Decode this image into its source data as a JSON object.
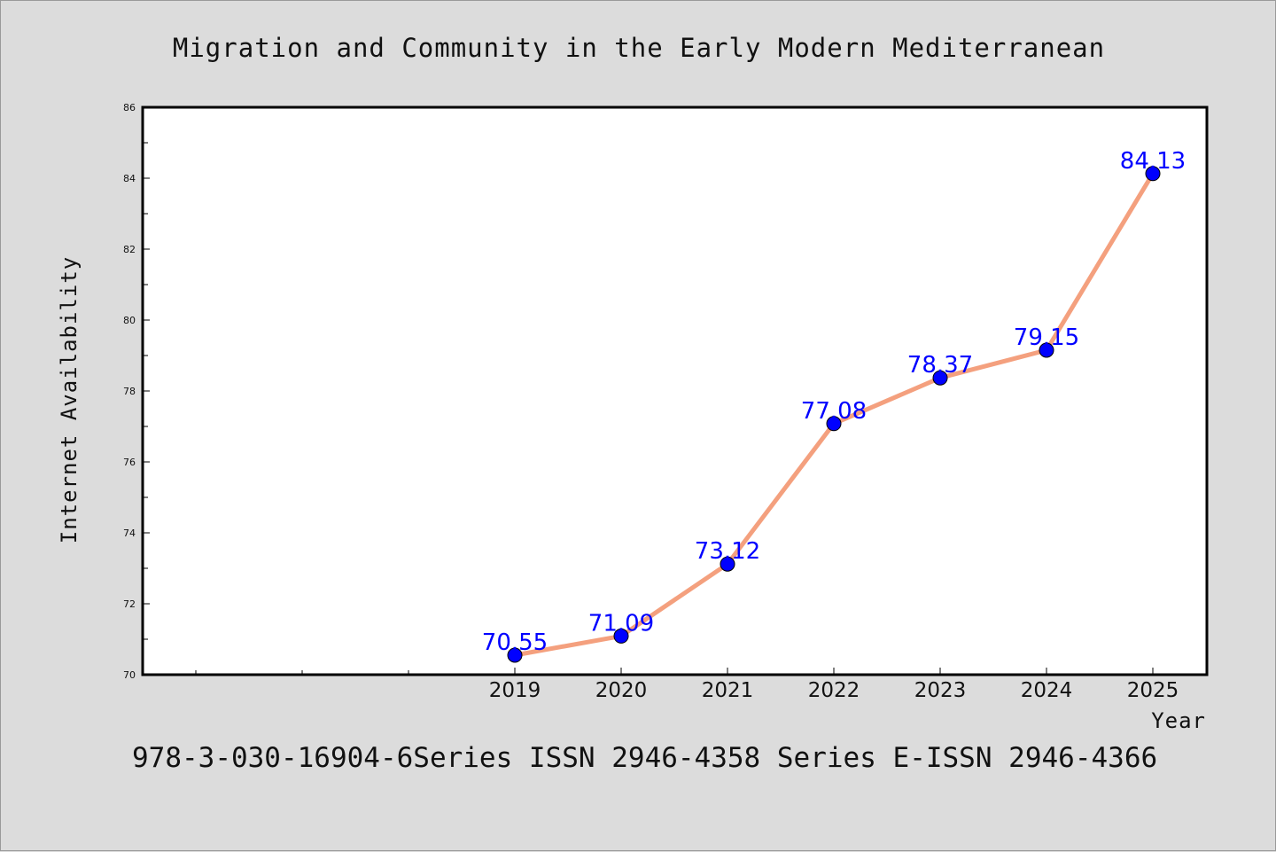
{
  "chart_data": {
    "type": "line",
    "title": "Migration and Community in the Early Modern Mediterranean",
    "xlabel": "Year",
    "ylabel": "Internet Availability",
    "x": [
      "2019",
      "2020",
      "2021",
      "2022",
      "2023",
      "2024",
      "2025"
    ],
    "values": [
      70.55,
      71.09,
      73.12,
      77.08,
      78.37,
      79.15,
      84.13
    ],
    "data_labels": [
      "70.55",
      "71.09",
      "73.12",
      "77.08",
      "78.37",
      "79.15",
      "84.13"
    ],
    "ylim": [
      70,
      86
    ],
    "yticks": [
      "70",
      "72",
      "74",
      "76",
      "78",
      "80",
      "82",
      "84",
      "86"
    ],
    "line_color": "#f4a07e",
    "marker_color": "#0000ff",
    "label_color": "#0000ff",
    "grid": false,
    "legend": "none"
  },
  "footer": "978-3-030-16904-6Series ISSN 2946-4358 Series E-ISSN 2946-4366"
}
